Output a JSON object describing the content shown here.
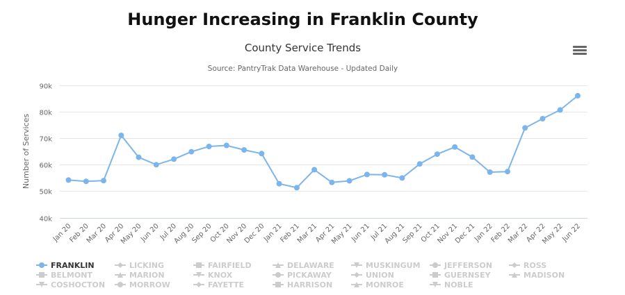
{
  "header": {
    "page_title": "Hunger Increasing in Franklin County"
  },
  "toolbar": {
    "menu_icon": "hamburger-menu-icon"
  },
  "colors": {
    "series": "#7cb5ec",
    "grid": "#e6e6e6",
    "axis_line": "#ccd6eb",
    "legend_hidden": "#cccccc",
    "legend_active": "#333333"
  },
  "chart_data": {
    "type": "line",
    "title": "County Service Trends",
    "subtitle": "Source: PantryTrak Data Warehouse - Updated Daily",
    "xlabel": "",
    "ylabel": "Number of Services",
    "ylim": [
      40000,
      90000
    ],
    "yticks": [
      40000,
      50000,
      60000,
      70000,
      80000,
      90000
    ],
    "ytick_labels": [
      "40k",
      "50k",
      "60k",
      "70k",
      "80k",
      "90k"
    ],
    "grid": true,
    "legend_position": "bottom",
    "categories": [
      "Jan 20",
      "Feb 20",
      "Mar 20",
      "Apr 20",
      "May 20",
      "Jun 20",
      "Jul 20",
      "Aug 20",
      "Sep 20",
      "Oct 20",
      "Nov 20",
      "Dec 20",
      "Jan 21",
      "Feb 21",
      "Mar 21",
      "Apr 21",
      "May 21",
      "Jun 21",
      "Jul 21",
      "Aug 21",
      "Sep 21",
      "Oct 21",
      "Nov 21",
      "Dec 21",
      "Jan 22",
      "Feb 22",
      "Mar 22",
      "Apr 22",
      "May 22",
      "Jun 22"
    ],
    "series": [
      {
        "name": "FRANKLIN",
        "visible": true,
        "symbol": "circle",
        "values": [
          54200,
          53700,
          54000,
          71100,
          62800,
          60000,
          62100,
          64900,
          66900,
          67300,
          65600,
          64200,
          52800,
          51300,
          58100,
          53300,
          53900,
          56300,
          56200,
          55000,
          60300,
          64000,
          66700,
          62900,
          57200,
          57400,
          73900,
          77400,
          80700,
          86100
        ]
      },
      {
        "name": "LICKING",
        "visible": false,
        "symbol": "diamond"
      },
      {
        "name": "FAIRFIELD",
        "visible": false,
        "symbol": "square"
      },
      {
        "name": "DELAWARE",
        "visible": false,
        "symbol": "triangle"
      },
      {
        "name": "MUSKINGUM",
        "visible": false,
        "symbol": "triangle-down"
      },
      {
        "name": "JEFFERSON",
        "visible": false,
        "symbol": "circle"
      },
      {
        "name": "ROSS",
        "visible": false,
        "symbol": "diamond"
      },
      {
        "name": "BELMONT",
        "visible": false,
        "symbol": "square"
      },
      {
        "name": "MARION",
        "visible": false,
        "symbol": "triangle"
      },
      {
        "name": "KNOX",
        "visible": false,
        "symbol": "triangle-down"
      },
      {
        "name": "PICKAWAY",
        "visible": false,
        "symbol": "circle"
      },
      {
        "name": "UNION",
        "visible": false,
        "symbol": "diamond"
      },
      {
        "name": "GUERNSEY",
        "visible": false,
        "symbol": "square"
      },
      {
        "name": "MADISON",
        "visible": false,
        "symbol": "triangle"
      },
      {
        "name": "COSHOCTON",
        "visible": false,
        "symbol": "triangle-down"
      },
      {
        "name": "MORROW",
        "visible": false,
        "symbol": "circle"
      },
      {
        "name": "FAYETTE",
        "visible": false,
        "symbol": "diamond"
      },
      {
        "name": "HARRISON",
        "visible": false,
        "symbol": "square"
      },
      {
        "name": "MONROE",
        "visible": false,
        "symbol": "triangle"
      },
      {
        "name": "NOBLE",
        "visible": false,
        "symbol": "triangle-down"
      }
    ]
  }
}
